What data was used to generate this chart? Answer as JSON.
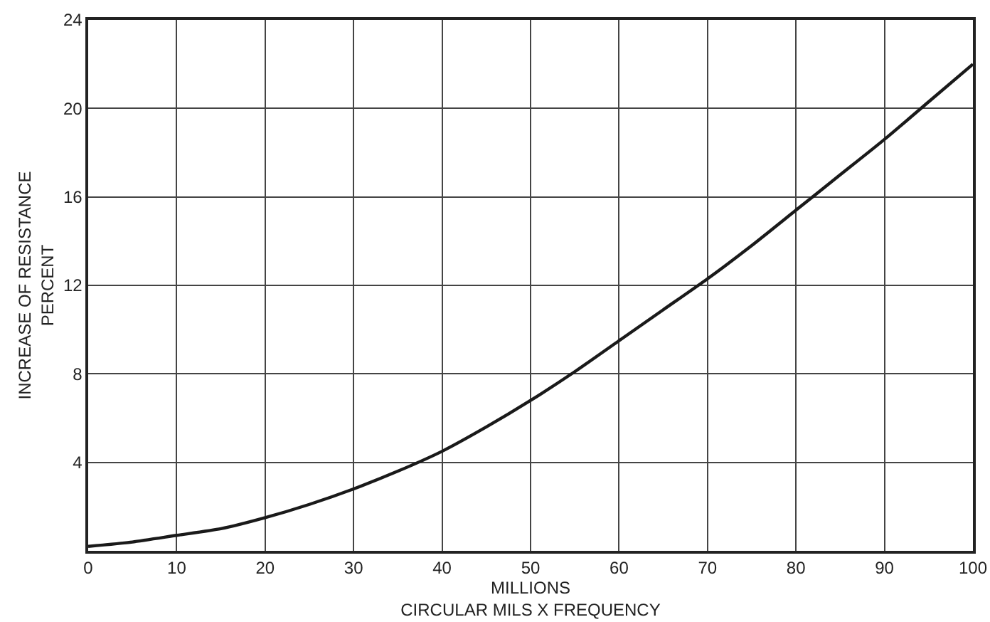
{
  "chart_data": {
    "type": "line",
    "xlabel": "MILLIONS\nCIRCULAR MILS X FREQUENCY",
    "ylabel": "INCREASE OF RESISTANCE\nPERCENT",
    "x": [
      0,
      5,
      10,
      15,
      20,
      25,
      30,
      35,
      40,
      45,
      50,
      55,
      60,
      65,
      70,
      75,
      80,
      85,
      90,
      95,
      100
    ],
    "series": [
      {
        "color": "#1a1a1a",
        "values": [
          0.2,
          0.4,
          0.7,
          1.0,
          1.5,
          2.1,
          2.8,
          3.6,
          4.5,
          5.6,
          6.8,
          8.1,
          9.5,
          10.9,
          12.3,
          13.8,
          15.4,
          17.0,
          18.6,
          20.3,
          22.0
        ]
      }
    ],
    "xlim": [
      0,
      100
    ],
    "ylim": [
      0,
      24
    ],
    "xticks": [
      0,
      10,
      20,
      30,
      40,
      50,
      60,
      70,
      80,
      90,
      100
    ],
    "yticks": [
      {
        "value": 0,
        "label": null
      },
      4,
      8,
      12,
      16,
      20,
      24
    ],
    "grid": true,
    "marker": "none",
    "line_style": "solid"
  }
}
